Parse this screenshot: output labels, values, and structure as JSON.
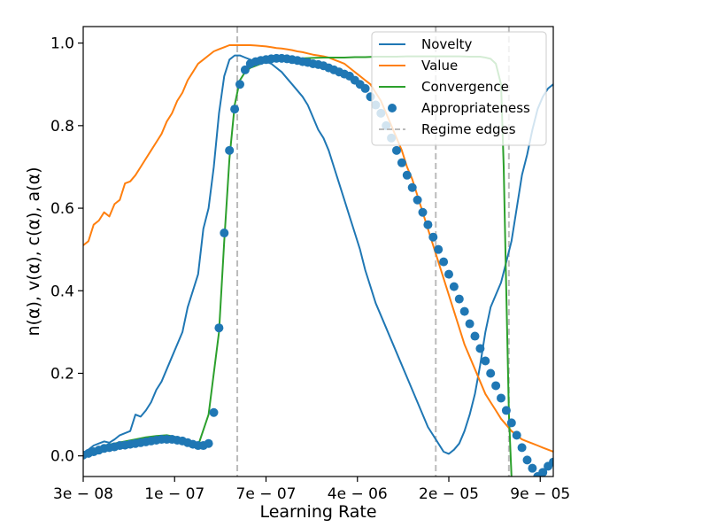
{
  "chart_data": {
    "type": "line",
    "xlabel": "Learning Rate",
    "ylabel": "n(α), v(α), c(α), a(α)",
    "x_tick_labels": [
      "3e − 08",
      "1e − 07",
      "7e − 07",
      "4e − 06",
      "2e − 05",
      "9e − 05"
    ],
    "y_tick_labels": [
      "0.0",
      "0.2",
      "0.4",
      "0.6",
      "0.8",
      "1.0"
    ],
    "y_ticks": [
      0.0,
      0.2,
      0.4,
      0.6,
      0.8,
      1.0
    ],
    "xlim": [
      0,
      90
    ],
    "ylim": [
      -0.05,
      1.04
    ],
    "x_ticks_pos": [
      0,
      17.5,
      35,
      52.5,
      70,
      87.5
    ],
    "regime_edges": [
      29.5,
      67.5,
      81.5
    ],
    "legend_position": "top-right",
    "series": [
      {
        "name": "Novelty",
        "color": "#1f77b4",
        "style": "line",
        "x": [
          0,
          1,
          2,
          3,
          4,
          5,
          6,
          7,
          8,
          9,
          10,
          11,
          12,
          13,
          14,
          15,
          16,
          17,
          18,
          19,
          20,
          21,
          22,
          23,
          24,
          25,
          26,
          27,
          28,
          29,
          30,
          31,
          32,
          33,
          34,
          35,
          36,
          37,
          38,
          39,
          40,
          41,
          42,
          43,
          44,
          45,
          46,
          47,
          48,
          49,
          50,
          51,
          52,
          53,
          54,
          55,
          56,
          57,
          58,
          59,
          60,
          61,
          62,
          63,
          64,
          65,
          66,
          67,
          68,
          69,
          70,
          71,
          72,
          73,
          74,
          75,
          76,
          77,
          78,
          79,
          80,
          81,
          82,
          83,
          84,
          85,
          86,
          87,
          88,
          89,
          90
        ],
        "y": [
          0.005,
          0.015,
          0.025,
          0.03,
          0.035,
          0.032,
          0.04,
          0.05,
          0.055,
          0.06,
          0.1,
          0.095,
          0.11,
          0.13,
          0.16,
          0.18,
          0.21,
          0.24,
          0.27,
          0.3,
          0.36,
          0.4,
          0.44,
          0.55,
          0.6,
          0.7,
          0.83,
          0.92,
          0.96,
          0.97,
          0.97,
          0.965,
          0.96,
          0.955,
          0.955,
          0.955,
          0.95,
          0.94,
          0.93,
          0.915,
          0.9,
          0.885,
          0.87,
          0.85,
          0.82,
          0.79,
          0.77,
          0.74,
          0.7,
          0.66,
          0.62,
          0.58,
          0.54,
          0.5,
          0.45,
          0.41,
          0.37,
          0.34,
          0.31,
          0.28,
          0.25,
          0.22,
          0.19,
          0.16,
          0.13,
          0.1,
          0.07,
          0.05,
          0.03,
          0.01,
          0.005,
          0.015,
          0.03,
          0.06,
          0.1,
          0.15,
          0.22,
          0.3,
          0.36,
          0.39,
          0.42,
          0.47,
          0.52,
          0.6,
          0.68,
          0.73,
          0.79,
          0.84,
          0.87,
          0.89,
          0.9
        ]
      },
      {
        "name": "Value",
        "color": "#ff7f0e",
        "style": "line",
        "x": [
          0,
          1,
          2,
          3,
          4,
          5,
          6,
          7,
          8,
          9,
          10,
          11,
          12,
          13,
          14,
          15,
          16,
          17,
          18,
          19,
          20,
          21,
          22,
          23,
          24,
          25,
          26,
          27,
          28,
          29,
          30,
          31,
          32,
          33,
          34,
          35,
          36,
          37,
          38,
          39,
          40,
          41,
          42,
          43,
          44,
          45,
          46,
          47,
          48,
          49,
          50,
          51,
          52,
          53,
          54,
          55,
          56,
          57,
          58,
          59,
          60,
          61,
          62,
          63,
          64,
          65,
          66,
          67,
          68,
          69,
          70,
          71,
          72,
          73,
          74,
          75,
          76,
          77,
          78,
          79,
          80,
          81,
          82,
          83,
          84,
          85,
          86,
          87,
          88,
          89,
          90
        ],
        "y": [
          0.51,
          0.52,
          0.56,
          0.57,
          0.59,
          0.58,
          0.61,
          0.62,
          0.66,
          0.665,
          0.68,
          0.7,
          0.72,
          0.74,
          0.76,
          0.78,
          0.81,
          0.83,
          0.86,
          0.88,
          0.91,
          0.93,
          0.95,
          0.96,
          0.97,
          0.98,
          0.985,
          0.99,
          0.995,
          0.995,
          0.995,
          0.995,
          0.995,
          0.994,
          0.993,
          0.992,
          0.99,
          0.988,
          0.987,
          0.985,
          0.983,
          0.98,
          0.978,
          0.975,
          0.972,
          0.97,
          0.968,
          0.965,
          0.96,
          0.955,
          0.95,
          0.94,
          0.93,
          0.92,
          0.91,
          0.9,
          0.88,
          0.86,
          0.83,
          0.8,
          0.77,
          0.74,
          0.7,
          0.67,
          0.63,
          0.59,
          0.55,
          0.51,
          0.47,
          0.43,
          0.39,
          0.35,
          0.31,
          0.27,
          0.24,
          0.21,
          0.18,
          0.15,
          0.13,
          0.11,
          0.09,
          0.075,
          0.06,
          0.05,
          0.04,
          0.035,
          0.03,
          0.025,
          0.02,
          0.015,
          0.01
        ]
      },
      {
        "name": "Convergence",
        "color": "#2ca02c",
        "style": "line",
        "x": [
          0,
          2,
          4,
          6,
          8,
          10,
          12,
          14,
          16,
          18,
          20,
          22,
          24,
          26,
          27,
          28,
          29,
          30,
          31,
          32,
          33,
          34,
          35,
          36,
          37,
          38,
          39,
          40,
          42,
          44,
          46,
          48,
          50,
          52,
          54,
          56,
          58,
          60,
          62,
          64,
          66,
          68,
          70,
          72,
          74,
          76,
          77,
          78,
          79,
          80,
          80.5,
          81,
          81.5,
          82
        ],
        "y": [
          0.005,
          0.015,
          0.025,
          0.03,
          0.035,
          0.04,
          0.045,
          0.048,
          0.05,
          0.045,
          0.03,
          0.025,
          0.1,
          0.3,
          0.52,
          0.72,
          0.85,
          0.91,
          0.93,
          0.94,
          0.945,
          0.95,
          0.955,
          0.958,
          0.96,
          0.96,
          0.96,
          0.962,
          0.963,
          0.964,
          0.965,
          0.965,
          0.965,
          0.966,
          0.966,
          0.967,
          0.967,
          0.967,
          0.968,
          0.968,
          0.968,
          0.968,
          0.968,
          0.968,
          0.967,
          0.967,
          0.965,
          0.962,
          0.95,
          0.9,
          0.7,
          0.4,
          0.1,
          -0.05
        ]
      },
      {
        "name": "Appropriateness",
        "color": "#1f77b4",
        "style": "scatter",
        "x": [
          0,
          1,
          2,
          3,
          4,
          5,
          6,
          7,
          8,
          9,
          10,
          11,
          12,
          13,
          14,
          15,
          16,
          17,
          18,
          19,
          20,
          21,
          22,
          23,
          24,
          25,
          26,
          27,
          28,
          29,
          30,
          31,
          32,
          33,
          34,
          35,
          36,
          37,
          38,
          39,
          40,
          41,
          42,
          43,
          44,
          45,
          46,
          47,
          48,
          49,
          50,
          51,
          52,
          53,
          54,
          55,
          56,
          57,
          58,
          59,
          60,
          61,
          62,
          63,
          64,
          65,
          66,
          67,
          68,
          69,
          70,
          71,
          72,
          73,
          74,
          75,
          76,
          77,
          78,
          79,
          80,
          81,
          82,
          83,
          84,
          85,
          86,
          87,
          88,
          89,
          90
        ],
        "y": [
          0.002,
          0.006,
          0.01,
          0.014,
          0.018,
          0.02,
          0.022,
          0.025,
          0.026,
          0.028,
          0.03,
          0.032,
          0.034,
          0.036,
          0.038,
          0.04,
          0.04,
          0.04,
          0.038,
          0.036,
          0.032,
          0.028,
          0.025,
          0.025,
          0.03,
          0.105,
          0.31,
          0.54,
          0.74,
          0.84,
          0.9,
          0.935,
          0.95,
          0.955,
          0.958,
          0.96,
          0.962,
          0.963,
          0.963,
          0.962,
          0.96,
          0.958,
          0.955,
          0.953,
          0.95,
          0.948,
          0.945,
          0.94,
          0.935,
          0.93,
          0.925,
          0.92,
          0.91,
          0.9,
          0.89,
          0.87,
          0.85,
          0.83,
          0.8,
          0.77,
          0.74,
          0.71,
          0.68,
          0.65,
          0.62,
          0.59,
          0.56,
          0.53,
          0.5,
          0.47,
          0.44,
          0.41,
          0.38,
          0.35,
          0.32,
          0.29,
          0.26,
          0.23,
          0.2,
          0.17,
          0.14,
          0.11,
          0.08,
          0.05,
          0.02,
          -0.01,
          -0.03,
          -0.05,
          -0.04,
          -0.025,
          -0.015
        ]
      },
      {
        "name": "Regime edges",
        "color": "#bbbbbb",
        "style": "dashed"
      }
    ]
  }
}
